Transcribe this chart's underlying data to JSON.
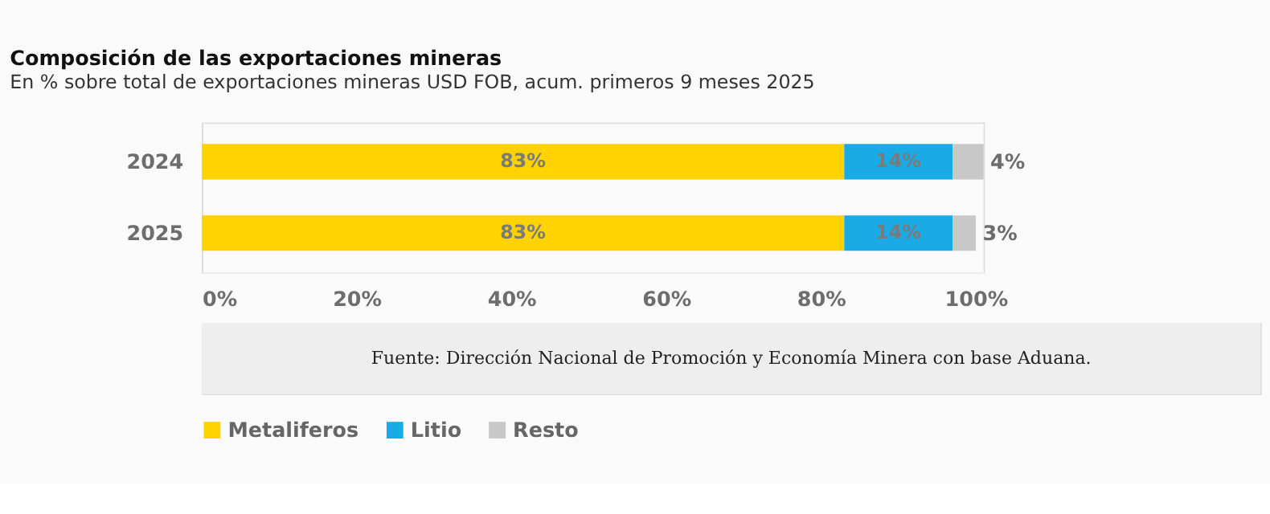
{
  "chart_data": {
    "type": "bar",
    "orientation": "horizontal",
    "stacked": true,
    "title": "Composición de las exportaciones mineras",
    "subtitle": "En % sobre total de exportaciones mineras USD FOB, acum. primeros 9 meses 2025",
    "categories": [
      "2024",
      "2025"
    ],
    "series": [
      {
        "name": "Metaliferos",
        "color": "#ffd200",
        "values": [
          83,
          83
        ],
        "value_labels": [
          "83%",
          "83%"
        ]
      },
      {
        "name": "Litio",
        "color": "#1aabe6",
        "values": [
          14,
          14
        ],
        "value_labels": [
          "14%",
          "14%"
        ]
      },
      {
        "name": "Resto",
        "color": "#c8c8c8",
        "values": [
          4,
          3
        ],
        "value_labels": [
          "4%",
          "3%"
        ]
      }
    ],
    "xlim": [
      0,
      101
    ],
    "xticks": [
      {
        "value": 0,
        "label": "0%"
      },
      {
        "value": 20,
        "label": "20%"
      },
      {
        "value": 40,
        "label": "40%"
      },
      {
        "value": 60,
        "label": "60%"
      },
      {
        "value": 80,
        "label": "80%"
      },
      {
        "value": 100,
        "label": "100%"
      }
    ],
    "grid": false,
    "legend": "bottom",
    "annotations": [
      "Fuente: Dirección Nacional de Promoción y Economía Minera con base Aduana."
    ]
  }
}
